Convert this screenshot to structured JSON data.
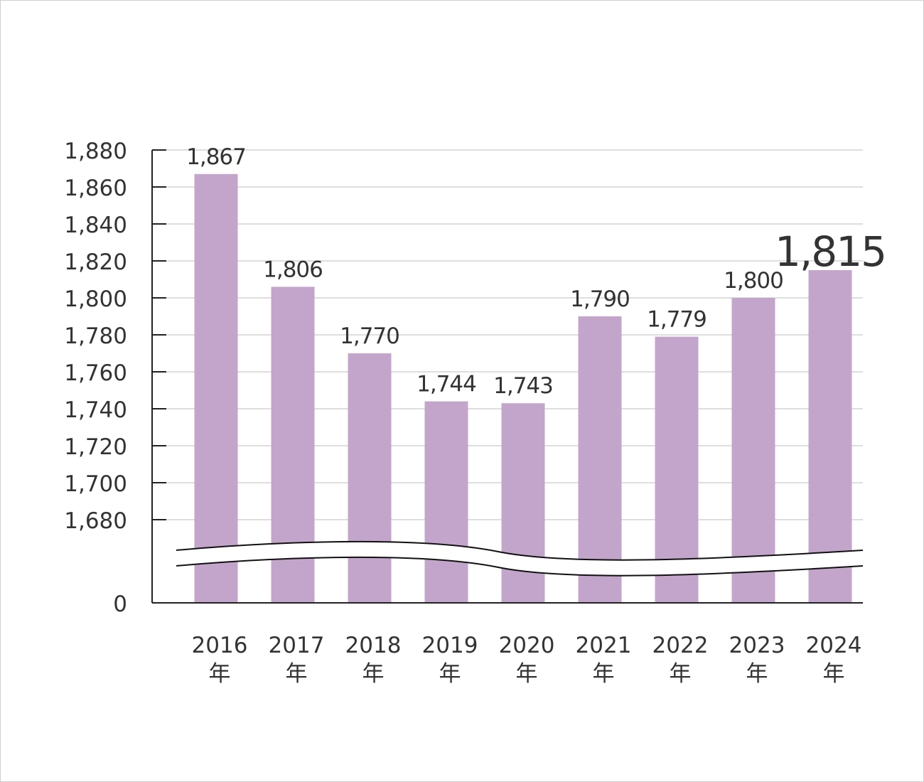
{
  "chart_data": {
    "type": "bar",
    "title": "",
    "xlabel": "",
    "ylabel": "",
    "categories": [
      "2016",
      "2017",
      "2018",
      "2019",
      "2020",
      "2021",
      "2022",
      "2023",
      "2024"
    ],
    "category_suffix": "年",
    "values": [
      1867,
      1806,
      1770,
      1744,
      1743,
      1790,
      1779,
      1800,
      1815
    ],
    "value_labels": [
      "1,867",
      "1,806",
      "1,770",
      "1,744",
      "1,743",
      "1,790",
      "1,779",
      "1,800",
      "1,815"
    ],
    "highlight_index": 8,
    "ylim": [
      1680,
      1880
    ],
    "axis_break": true,
    "y_ticks": [
      1880,
      1860,
      1840,
      1820,
      1800,
      1780,
      1760,
      1740,
      1720,
      1700,
      1680
    ],
    "y_tick_labels": [
      "1,880",
      "1,860",
      "1,840",
      "1,820",
      "1,800",
      "1,780",
      "1,760",
      "1,740",
      "1,720",
      "1,700",
      "1,680"
    ],
    "y_zero_label": "0",
    "grid": true,
    "bar_color": "#c3a5cb",
    "grid_color": "#bdbdbd"
  }
}
